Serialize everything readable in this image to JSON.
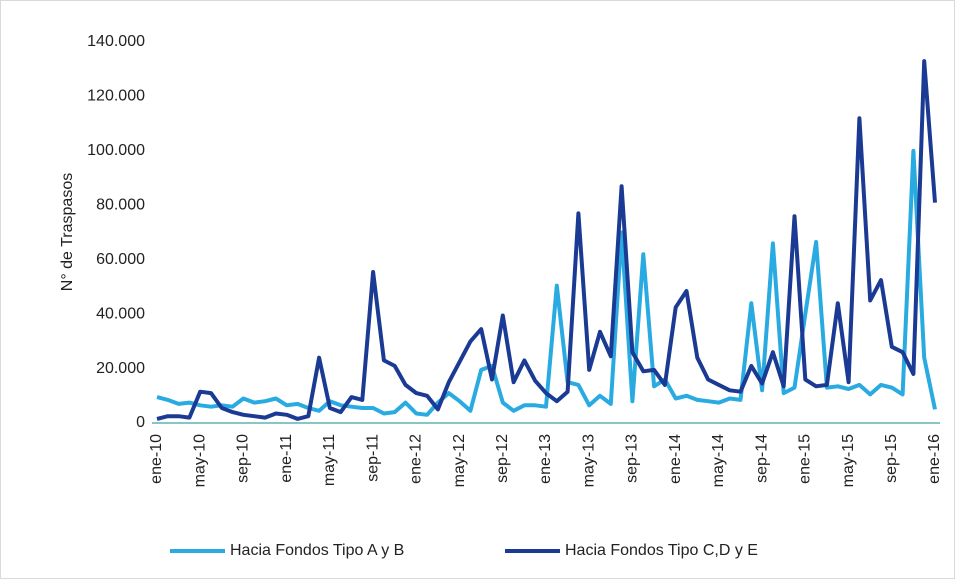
{
  "chart_data": {
    "type": "line",
    "y_label": "N° de Traspasos",
    "categories": [
      "ene-10",
      null,
      null,
      null,
      "may-10",
      null,
      null,
      null,
      "sep-10",
      null,
      null,
      null,
      "ene-11",
      null,
      null,
      null,
      "may-11",
      null,
      null,
      null,
      "sep-11",
      null,
      null,
      null,
      "ene-12",
      null,
      null,
      null,
      "may-12",
      null,
      null,
      null,
      "sep-12",
      null,
      null,
      null,
      "ene-13",
      null,
      null,
      null,
      "may-13",
      null,
      null,
      null,
      "sep-13",
      null,
      null,
      null,
      "ene-14",
      null,
      null,
      null,
      "may-14",
      null,
      null,
      null,
      "sep-14",
      null,
      null,
      null,
      "ene-15",
      null,
      null,
      null,
      "may-15",
      null,
      null,
      null,
      "sep-15",
      null,
      null,
      null,
      "ene-16"
    ],
    "series": [
      {
        "name": "Hacia Fondos Tipo A y B",
        "color": "#29abe2",
        "values": [
          9500,
          8500,
          7000,
          7500,
          6500,
          6000,
          6500,
          6000,
          9000,
          7500,
          8000,
          9000,
          6500,
          7000,
          5500,
          4500,
          8000,
          6500,
          6000,
          5500,
          5500,
          3500,
          4000,
          7500,
          3500,
          3000,
          7500,
          11000,
          8000,
          4500,
          19500,
          21000,
          7500,
          4500,
          6500,
          6500,
          6000,
          50500,
          15000,
          14000,
          6500,
          10000,
          7000,
          70000,
          8000,
          62000,
          13500,
          16000,
          9000,
          10000,
          8500,
          8000,
          7500,
          9000,
          8500,
          44000,
          12000,
          66000,
          11000,
          13000,
          40000,
          66500,
          13000,
          13500,
          12500,
          14000,
          10500,
          14000,
          13000,
          10500,
          100000,
          24000,
          5000
        ]
      },
      {
        "name": "Hacia Fondos Tipo C,D y E",
        "color": "#1b3a93",
        "values": [
          1500,
          2500,
          2500,
          2000,
          11500,
          11000,
          5500,
          4000,
          3000,
          2500,
          2000,
          3500,
          3000,
          1500,
          2500,
          24000,
          5500,
          4000,
          9500,
          8500,
          55500,
          23000,
          21000,
          14000,
          11000,
          10000,
          5000,
          15000,
          22500,
          30000,
          34500,
          16000,
          39500,
          15000,
          23000,
          15500,
          11000,
          8000,
          11500,
          77000,
          19500,
          33500,
          24500,
          87000,
          26000,
          19000,
          19500,
          14000,
          42500,
          48500,
          24000,
          16000,
          14000,
          12000,
          11500,
          21000,
          14500,
          26000,
          13500,
          76000,
          16000,
          13500,
          14000,
          44000,
          15000,
          112000,
          45000,
          52500,
          28000,
          26000,
          18000,
          133000,
          81000
        ]
      }
    ],
    "ylim": [
      0,
      140000
    ],
    "yticks": [
      0,
      {
        "value": 20000,
        "label": "20.000"
      },
      {
        "value": 40000,
        "label": "40.000"
      },
      {
        "value": 60000,
        "label": "60.000"
      },
      {
        "value": 80000,
        "label": "80.000"
      },
      {
        "value": 100000,
        "label": "100.000"
      },
      {
        "value": 120000,
        "label": "120.000"
      },
      {
        "value": 140000,
        "label": "140.000"
      }
    ],
    "grid": false,
    "legend": "bottom"
  }
}
